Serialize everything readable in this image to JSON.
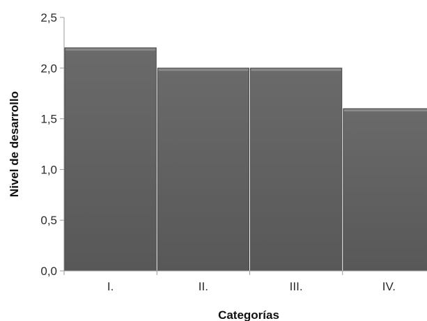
{
  "chart_data": {
    "type": "bar",
    "title": "",
    "xlabel": "Categorías",
    "ylabel": "Nivel de desarrollo",
    "categories": [
      "I.",
      "II.",
      "III.",
      "IV."
    ],
    "values": [
      2.2,
      2.0,
      2.0,
      1.6
    ],
    "ylim": [
      0,
      2.5
    ],
    "yticks": [
      "0,0",
      "0,5",
      "1,0",
      "1,5",
      "2,0",
      "2,5"
    ],
    "grid": false,
    "legend": "none",
    "colors": {
      "bar": "#5f5f5f",
      "bar_top": "#8a8a8a",
      "axis": "#9a9a9a"
    }
  }
}
